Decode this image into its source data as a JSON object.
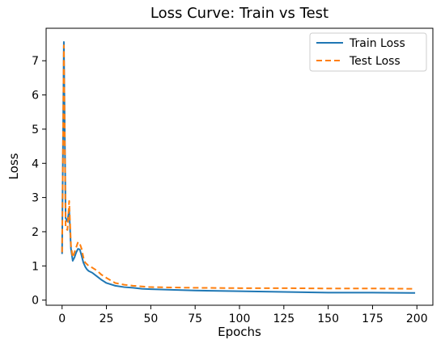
{
  "chart_data": {
    "type": "line",
    "title": "Loss Curve: Train vs Test",
    "xlabel": "Epochs",
    "ylabel": "Loss",
    "xlim": [
      -9,
      209
    ],
    "ylim": [
      -0.15,
      7.95
    ],
    "xticks": [
      0,
      25,
      50,
      75,
      100,
      125,
      150,
      175,
      200
    ],
    "yticks": [
      0,
      1,
      2,
      3,
      4,
      5,
      6,
      7
    ],
    "grid": false,
    "legend_position": "top-right",
    "series": [
      {
        "name": "Train Loss",
        "color": "#1f77b4",
        "dash": "solid",
        "x": [
          0,
          1,
          2,
          3,
          4,
          5,
          6,
          7,
          8,
          9,
          10,
          11,
          12,
          13,
          14,
          15,
          17,
          20,
          22,
          25,
          30,
          35,
          40,
          45,
          50,
          75,
          100,
          125,
          150,
          175,
          199
        ],
        "y": [
          1.35,
          7.55,
          2.4,
          2.3,
          2.65,
          1.5,
          1.15,
          1.25,
          1.4,
          1.5,
          1.48,
          1.3,
          1.1,
          0.98,
          0.9,
          0.85,
          0.8,
          0.68,
          0.6,
          0.5,
          0.42,
          0.38,
          0.36,
          0.33,
          0.32,
          0.28,
          0.26,
          0.24,
          0.22,
          0.22,
          0.21
        ]
      },
      {
        "name": "Test Loss",
        "color": "#ff7f0e",
        "dash": "dashed",
        "x": [
          0,
          1,
          2,
          3,
          4,
          5,
          6,
          7,
          8,
          9,
          10,
          11,
          12,
          13,
          14,
          15,
          17,
          20,
          22,
          25,
          30,
          35,
          40,
          45,
          50,
          75,
          100,
          125,
          150,
          175,
          199
        ],
        "y": [
          1.4,
          7.45,
          2.1,
          2.05,
          2.9,
          1.6,
          1.25,
          1.4,
          1.55,
          1.7,
          1.65,
          1.5,
          1.25,
          1.1,
          1.05,
          1.0,
          0.95,
          0.85,
          0.75,
          0.65,
          0.5,
          0.45,
          0.42,
          0.4,
          0.38,
          0.36,
          0.35,
          0.35,
          0.34,
          0.34,
          0.33
        ]
      }
    ]
  }
}
